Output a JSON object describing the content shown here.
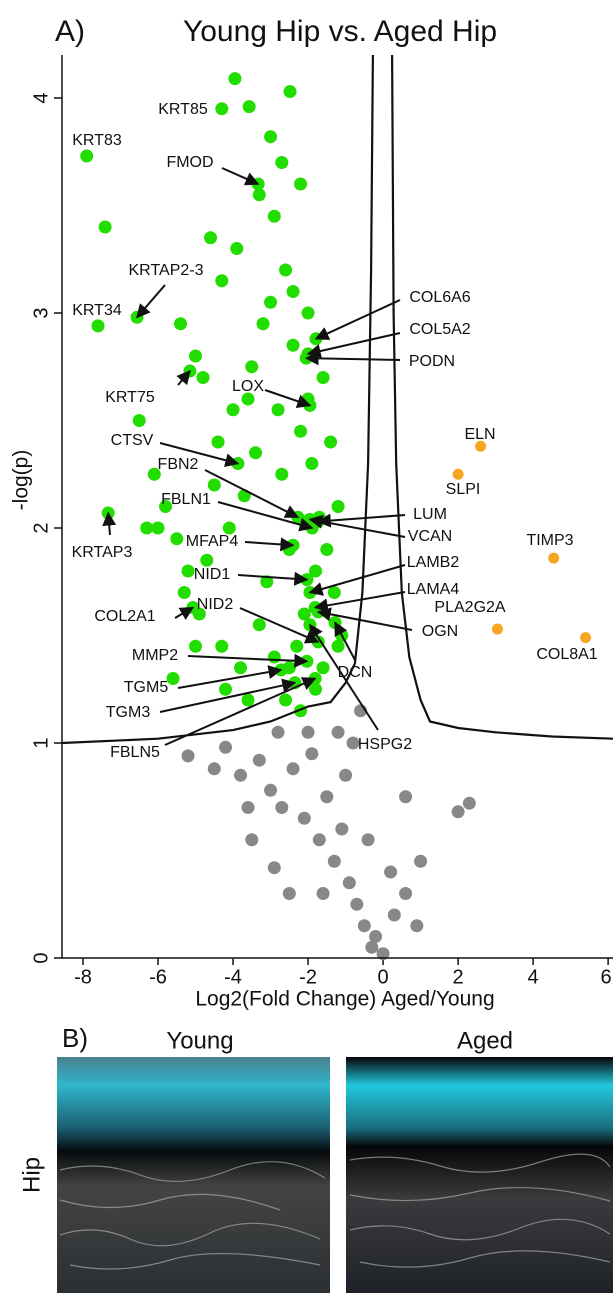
{
  "chart_data": {
    "type": "scatter",
    "panel_label": "A)",
    "title": "Young Hip vs. Aged Hip",
    "x_label": "Log2(Fold Change) Aged/Young",
    "y_label": "-log(p)",
    "xlim": [
      -8.56,
      6.13
    ],
    "ylim": [
      0,
      4.2
    ],
    "xticks": [
      -8,
      -6,
      -4,
      -2,
      0,
      2,
      4,
      6
    ],
    "yticks": [
      0,
      1,
      2,
      3,
      4
    ],
    "series": [
      {
        "color": "#22dd00",
        "labels": [
          "KRT85",
          "KRT83",
          "FMOD",
          "KRTAP2-3",
          "KRT34",
          "KRT75",
          "LOX",
          "COL6A6",
          "COL5A2",
          "PODN",
          "CTSV",
          "FBN2",
          "FBLN1",
          "LUM",
          "VCAN",
          "MFAP4",
          "NID1",
          "LAMB2",
          "LAMA4",
          "OGN",
          "NID2",
          "DCN",
          "HSPG2",
          "COL2A1",
          "MMP2",
          "TGM5",
          "TGM3",
          "FBLN5",
          "KRTAP3"
        ],
        "x": [
          -4.3,
          -7.9,
          -3.33,
          -6.56,
          -7.6,
          -5.15,
          -1.95,
          -1.79,
          -2.0,
          -2.05,
          -3.87,
          -2.27,
          -1.89,
          -1.73,
          -1.95,
          -2.4,
          -2.03,
          -1.95,
          -1.81,
          -1.73,
          -1.73,
          -1.28,
          -1.95,
          -5.07,
          -2.03,
          -2.72,
          -2.35,
          -1.81,
          -7.33
        ],
        "values": [
          3.95,
          3.73,
          3.6,
          2.98,
          2.94,
          2.73,
          2.57,
          2.88,
          2.81,
          2.79,
          2.3,
          2.05,
          2.0,
          2.03,
          2.04,
          1.92,
          1.76,
          1.7,
          1.63,
          1.61,
          1.47,
          1.56,
          1.55,
          1.63,
          1.38,
          1.34,
          1.28,
          1.3,
          2.07
        ]
      },
      {
        "color": "#22dd00",
        "x": [
          -3.95,
          -3.57,
          -2.48,
          -7.41,
          -3.0,
          -3.3,
          -3.9,
          -4.6,
          -4.3,
          -2.7,
          -2.2,
          -2.9,
          -5.4,
          -5.0,
          -4.8,
          -6.1,
          -6.5,
          -5.8,
          -6.0,
          -5.5,
          -5.2,
          -4.4,
          -3.6,
          -3.2,
          -2.6,
          -2.0,
          -1.6,
          -1.4,
          -1.2,
          -2.4,
          -2.8,
          -3.4,
          -3.7,
          -4.1,
          -4.7,
          -5.3,
          -4.9,
          -3.1,
          -2.5,
          -1.9,
          -1.5,
          -1.3,
          -1.1,
          -2.1,
          -2.3,
          -2.9,
          -3.3,
          -3.8,
          -4.2,
          -2.6,
          -2.2,
          -1.8,
          -2.0,
          -2.4,
          -3.0,
          -3.5,
          -4.0,
          -4.5,
          -1.6,
          -1.2,
          -5.6,
          -5.0,
          -6.3,
          -4.3,
          -3.6,
          -2.7,
          -1.7,
          -2.2,
          -1.8,
          -2.5
        ],
        "values": [
          4.09,
          3.96,
          4.03,
          3.4,
          3.82,
          3.55,
          3.3,
          3.35,
          3.15,
          3.7,
          3.6,
          3.45,
          2.95,
          2.8,
          2.7,
          2.25,
          2.5,
          2.1,
          2.0,
          1.95,
          1.8,
          2.4,
          2.6,
          2.95,
          3.2,
          3.0,
          2.7,
          2.4,
          2.1,
          2.85,
          2.55,
          2.35,
          2.15,
          2.0,
          1.85,
          1.7,
          1.6,
          1.75,
          1.9,
          2.3,
          1.9,
          1.7,
          1.5,
          1.6,
          1.45,
          1.4,
          1.55,
          1.35,
          1.25,
          1.2,
          1.15,
          1.25,
          2.6,
          3.1,
          3.05,
          2.75,
          2.55,
          2.2,
          1.35,
          1.45,
          1.3,
          1.45,
          2.0,
          1.45,
          1.2,
          2.25,
          2.05,
          2.45,
          1.8,
          1.35
        ]
      },
      {
        "color": "#f5a623",
        "labels": [
          "ELN",
          "SLPI",
          "TIMP3",
          "PLA2G2A",
          "COL8A1"
        ],
        "x": [
          2.6,
          2.0,
          4.55,
          3.05,
          5.4
        ],
        "values": [
          2.38,
          2.25,
          1.86,
          1.53,
          1.49
        ]
      },
      {
        "color": "#888888",
        "x": [
          -5.2,
          -4.2,
          -3.8,
          -3.3,
          -3.0,
          -2.7,
          -2.4,
          -2.1,
          -1.9,
          -1.7,
          -1.5,
          -1.3,
          -1.1,
          -0.9,
          -0.7,
          -0.5,
          -0.3,
          0.0,
          -0.2,
          0.3,
          0.6,
          1.0,
          0.6,
          2.0,
          2.3,
          -3.5,
          -2.9,
          -2.5,
          -1.6,
          -1.0,
          -0.8,
          -0.6,
          -1.2,
          -2.0,
          -2.8,
          -0.4,
          0.2,
          -4.5,
          -3.6,
          0.9
        ],
        "values": [
          0.94,
          0.98,
          0.85,
          0.92,
          0.78,
          0.7,
          0.88,
          0.65,
          0.95,
          0.55,
          0.75,
          0.45,
          0.6,
          0.35,
          0.25,
          0.15,
          0.05,
          0.02,
          0.1,
          0.2,
          0.3,
          0.45,
          0.75,
          0.68,
          0.72,
          0.55,
          0.42,
          0.3,
          0.3,
          0.85,
          1.0,
          1.15,
          1.05,
          1.05,
          1.05,
          0.55,
          0.4,
          0.88,
          0.7,
          0.15
        ]
      }
    ],
    "threshold_curves": [
      {
        "x": [
          -8.56,
          -6,
          -4,
          -3,
          -2,
          -1.4,
          -1.0,
          -0.75,
          -0.55,
          -0.4,
          -0.32,
          -0.27
        ],
        "values": [
          1.0,
          1.02,
          1.06,
          1.1,
          1.17,
          1.19,
          1.28,
          1.37,
          1.7,
          2.3,
          3.2,
          4.2
        ]
      },
      {
        "x": [
          0.24,
          0.28,
          0.35,
          0.5,
          0.7,
          1.0,
          1.25,
          2,
          3,
          4.5,
          6.13
        ],
        "values": [
          4.2,
          3.0,
          2.3,
          1.7,
          1.4,
          1.2,
          1.1,
          1.07,
          1.05,
          1.03,
          1.02
        ]
      }
    ]
  },
  "panel_b": {
    "label": "B)",
    "columns": [
      "Young",
      "Aged"
    ],
    "row": "Hip"
  }
}
